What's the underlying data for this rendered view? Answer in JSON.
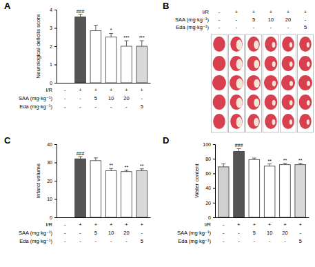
{
  "chart_data": [
    {
      "type": "bar",
      "title": "A",
      "y_label": "Neurological deficits score",
      "categories": [
        null,
        null,
        null,
        null,
        null,
        null
      ],
      "values": [
        0,
        3.6,
        2.85,
        2.5,
        2.0,
        2.0
      ],
      "errors": [
        0,
        0.15,
        0.3,
        0.2,
        0.3,
        0.3
      ],
      "annotations": [
        null,
        "###",
        null,
        "*",
        "***",
        "***"
      ],
      "colors": [
        "#d0d0d0",
        "#555555",
        "#ffffff",
        "#ffffff",
        "#ffffff",
        "#d8d8d8"
      ],
      "ylim": [
        0,
        4
      ],
      "yticks": [
        0,
        1,
        2,
        3,
        4
      ],
      "treatments": [
        {
          "label": "I/R",
          "values": [
            "-",
            "+",
            "+",
            "+",
            "+",
            "+"
          ]
        },
        {
          "label": "SAA (mg·kg⁻¹)",
          "values": [
            "-",
            "-",
            "5",
            "10",
            "20",
            "-"
          ]
        },
        {
          "label": "Eda (mg·kg⁻¹)",
          "values": [
            "-",
            "-",
            "-",
            "-",
            "-",
            "5"
          ]
        }
      ]
    },
    {
      "type": "bar",
      "title": "C",
      "y_label": "Infarct volume",
      "categories": [
        null,
        null,
        null,
        null,
        null,
        null
      ],
      "values": [
        0,
        32,
        31,
        25.5,
        25,
        25.5
      ],
      "errors": [
        0,
        1.2,
        1.5,
        1.2,
        0.8,
        1.0
      ],
      "annotations": [
        null,
        "###",
        null,
        "**",
        "**",
        "**"
      ],
      "colors": [
        "#d0d0d0",
        "#555555",
        "#ffffff",
        "#ffffff",
        "#ffffff",
        "#d8d8d8"
      ],
      "ylim": [
        0,
        40
      ],
      "yticks": [
        0,
        10,
        20,
        30,
        40
      ],
      "treatments": [
        {
          "label": "I/R",
          "values": [
            "-",
            "+",
            "+",
            "+",
            "+",
            "+"
          ]
        },
        {
          "label": "SAA (mg·kg⁻¹)",
          "values": [
            "-",
            "-",
            "5",
            "10",
            "20",
            "-"
          ]
        },
        {
          "label": "Eda (mg·kg⁻¹)",
          "values": [
            "-",
            "-",
            "-",
            "-",
            "-",
            "5"
          ]
        }
      ]
    },
    {
      "type": "bar",
      "title": "D",
      "y_label": "Water content",
      "categories": [
        null,
        null,
        null,
        null,
        null,
        null
      ],
      "values": [
        69,
        90,
        79,
        70,
        72,
        72
      ],
      "errors": [
        4,
        4,
        2,
        3,
        2,
        2
      ],
      "annotations": [
        null,
        "###",
        null,
        "**",
        "**",
        "**"
      ],
      "colors": [
        "#d0d0d0",
        "#555555",
        "#ffffff",
        "#ffffff",
        "#ffffff",
        "#d8d8d8"
      ],
      "ylim": [
        0,
        100
      ],
      "yticks": [
        0,
        20,
        40,
        60,
        80,
        100
      ],
      "treatments": [
        {
          "label": "I/R",
          "values": [
            "-",
            "+",
            "+",
            "+",
            "+",
            "+"
          ]
        },
        {
          "label": "SAA (mg·kg⁻¹)",
          "values": [
            "-",
            "-",
            "5",
            "10",
            "20",
            "-"
          ]
        },
        {
          "label": "Eda (mg·kg⁻¹)",
          "values": [
            "-",
            "-",
            "-",
            "-",
            "-",
            "5"
          ]
        }
      ]
    }
  ],
  "images": {
    "title": "B",
    "treatments": [
      {
        "label": "I/R",
        "values": [
          "-",
          "+",
          "+",
          "+",
          "+",
          "+"
        ]
      },
      {
        "label": "SAA (mg·kg⁻¹)",
        "values": [
          "-",
          "-",
          "5",
          "10",
          "20",
          "-"
        ]
      },
      {
        "label": "Eda (mg·kg⁻¹)",
        "values": [
          "-",
          "-",
          "-",
          "-",
          "-",
          "5"
        ]
      }
    ]
  }
}
